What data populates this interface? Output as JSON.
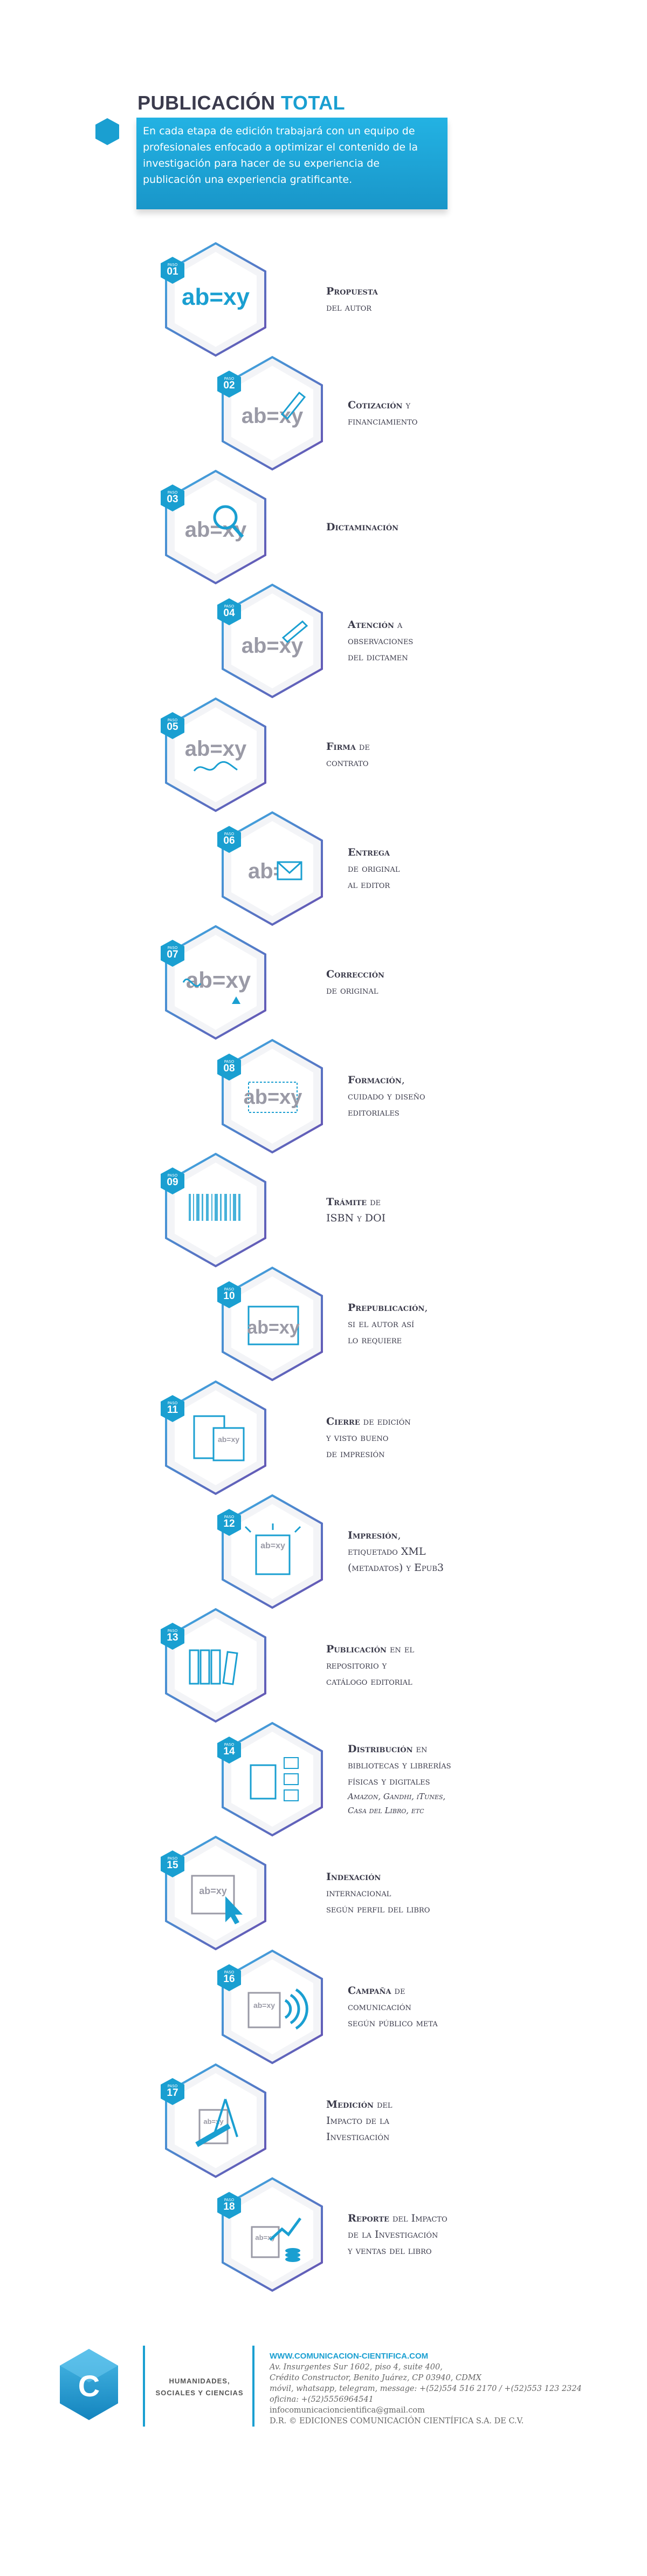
{
  "header": {
    "title_main": "PUBLICACIÓN",
    "title_accent": "TOTAL",
    "intro": "En cada etapa de edición trabajará con un equipo de profesionales enfocado a optimizar el contenido de la investigación para hacer de su experiencia de publicación una experiencia gratificante."
  },
  "colors": {
    "accent": "#1a9fd1",
    "purple": "#6a4fb0",
    "text": "#3a3a4a"
  },
  "badge_word": "PASO",
  "steps": [
    {
      "num": "01",
      "bold": "Propuesta",
      "rest": "",
      "lines": [
        "del autor"
      ],
      "icon": "abxy-icon"
    },
    {
      "num": "02",
      "bold": "Cotización",
      "rest": " y",
      "lines": [
        "financiamiento"
      ],
      "icon": "pen-icon"
    },
    {
      "num": "03",
      "bold": "Dictaminación",
      "rest": "",
      "lines": [],
      "icon": "magnifier-icon"
    },
    {
      "num": "04",
      "bold": "Atención",
      "rest": " a",
      "lines": [
        "observaciones",
        "del dictamen"
      ],
      "icon": "pencil-icon"
    },
    {
      "num": "05",
      "bold": "Firma",
      "rest": " de",
      "lines": [
        "contrato"
      ],
      "icon": "signature-icon"
    },
    {
      "num": "06",
      "bold": "Entrega",
      "rest": "",
      "lines": [
        "de original",
        "al editor"
      ],
      "icon": "envelope-icon"
    },
    {
      "num": "07",
      "bold": "Corrección",
      "rest": "",
      "lines": [
        "de original"
      ],
      "icon": "correction-icon"
    },
    {
      "num": "08",
      "bold": "Formación",
      "rest": ",",
      "lines": [
        "cuidado y diseño",
        "editoriales"
      ],
      "icon": "layout-icon"
    },
    {
      "num": "09",
      "bold": "Trámite",
      "rest": " de",
      "lines": [
        "ISBN y DOI"
      ],
      "icon": "barcode-icon"
    },
    {
      "num": "10",
      "bold": "Prepublicación",
      "rest": ",",
      "lines": [
        "si el autor así",
        "lo requiere"
      ],
      "icon": "pdf-icon"
    },
    {
      "num": "11",
      "bold": "Cierre",
      "rest": " de edición",
      "lines": [
        "y visto bueno",
        "de impresión"
      ],
      "icon": "approval-icon"
    },
    {
      "num": "12",
      "bold": "Impresión",
      "rest": ",",
      "lines": [
        "etiquetado XML",
        "(metadatos) y Epub3"
      ],
      "icon": "print-book-icon"
    },
    {
      "num": "13",
      "bold": "Publicación",
      "rest": " en el",
      "lines": [
        "repositorio y",
        "catálogo editorial"
      ],
      "icon": "bookshelf-icon"
    },
    {
      "num": "14",
      "bold": "Distribución",
      "rest": " en",
      "lines": [
        "bibliotecas y librerías",
        "físicas y digitales"
      ],
      "extra": [
        "Amazon, Gandhi, iTunes,",
        "Casa del Libro, etc"
      ],
      "icon": "distribution-icon"
    },
    {
      "num": "15",
      "bold": "Indexación",
      "rest": "",
      "lines": [
        "internacional",
        "según perfil del libro"
      ],
      "icon": "cursor-icon"
    },
    {
      "num": "16",
      "bold": "Campaña",
      "rest": " de",
      "lines": [
        "comunicación",
        "según público meta"
      ],
      "icon": "broadcast-icon"
    },
    {
      "num": "17",
      "bold": "Medición",
      "rest": " del",
      "lines": [
        "Impacto de la",
        "Investigación"
      ],
      "icon": "compass-icon"
    },
    {
      "num": "18",
      "bold": "Reporte",
      "rest": " del Impacto",
      "lines": [
        "de la Investigación",
        "y ventas del libro"
      ],
      "icon": "growth-icon"
    }
  ],
  "footer": {
    "logo_letter": "C",
    "org": "HUMANIDADES, SOCIALES Y CIENCIAS",
    "web": "WWW.COMUNICACION-CIENTIFICA.COM",
    "address1": "Av. Insurgentes Sur 1602, piso 4, suite 400,",
    "address2": "Crédito Constructor, Benito Juárez, CP 03940, CDMX",
    "phones": "móvil, whatsapp, telegram, message: +(52)554 516 2170 / +(52)553 123 2324",
    "office": "oficina: +(52)5556964541",
    "email": "infocomunicacioncientifica@gmail.com",
    "rights": "D.R. © EDICIONES COMUNICACIÓN CIENTÍFICA S.A. DE C.V."
  }
}
